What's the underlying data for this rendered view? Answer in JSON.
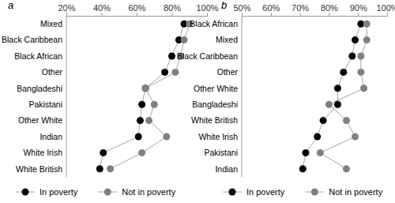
{
  "chart_data": [
    {
      "type": "dot",
      "title": "a",
      "categories": [
        "Mixed",
        "Black Caribbean",
        "Black African",
        "Other",
        "Bangladeshi",
        "Pakistani",
        "Other White",
        "Indian",
        "White Irish",
        "White British"
      ],
      "series": [
        {
          "name": "In poverty",
          "color": "#000000",
          "values": [
            87,
            84,
            80,
            76,
            65,
            63,
            62,
            61,
            41,
            39
          ]
        },
        {
          "name": "Not in poverty",
          "color": "#808080",
          "values": [
            90,
            87,
            85,
            82,
            65,
            70,
            67,
            77,
            63,
            45
          ]
        }
      ],
      "xlim": [
        20,
        100
      ],
      "xticks": [
        {
          "value": 20,
          "label": "20%"
        },
        {
          "value": 40,
          "label": "40%"
        },
        {
          "value": 60,
          "label": "60%"
        },
        {
          "value": 80,
          "label": "80%"
        },
        {
          "value": 100,
          "label": "100%"
        }
      ],
      "grid": false,
      "legend": "bottom",
      "marker": "circle",
      "line_style": "solid"
    },
    {
      "type": "dot",
      "title": "b",
      "categories": [
        "Black African",
        "Mixed",
        "Black Caribbean",
        "Other",
        "Other White",
        "Bangladeshi",
        "White British",
        "White Irish",
        "Pakistani",
        "Indian"
      ],
      "series": [
        {
          "name": "In poverty",
          "color": "#000000",
          "values": [
            91,
            89,
            88,
            85,
            83,
            83,
            78,
            76,
            72,
            71
          ]
        },
        {
          "name": "Not in poverty",
          "color": "#808080",
          "values": [
            93,
            93,
            91,
            91,
            92,
            80,
            86,
            89,
            77,
            86
          ]
        }
      ],
      "xlim": [
        50,
        100
      ],
      "xticks": [
        {
          "value": 50,
          "label": "50%"
        },
        {
          "value": 60,
          "label": "60%"
        },
        {
          "value": 70,
          "label": "70%"
        },
        {
          "value": 80,
          "label": "80%"
        },
        {
          "value": 90,
          "label": "90%"
        },
        {
          "value": 100,
          "label": "100%"
        }
      ],
      "grid": false,
      "legend": "bottom",
      "marker": "circle",
      "line_style": "solid"
    }
  ]
}
